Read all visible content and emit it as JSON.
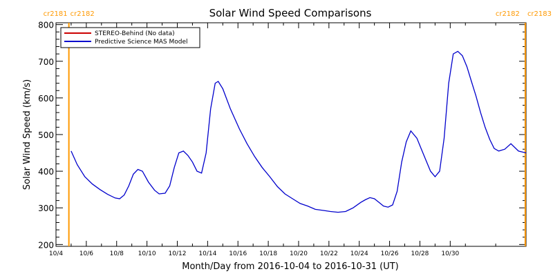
{
  "chart_data": {
    "type": "line",
    "title": "Solar Wind Speed Comparisons",
    "xlabel": "Month/Day from 2016-10-04 to 2016-10-31 (UT)",
    "ylabel": "Solar Wind Speed (km/s)",
    "xlim": [
      4.0,
      35.0
    ],
    "ylim": [
      195,
      805
    ],
    "ytick_values": [
      200,
      300,
      400,
      500,
      600,
      700,
      800
    ],
    "xtick_values": [
      4,
      6,
      8,
      10,
      12,
      14,
      16,
      18,
      20,
      22,
      24,
      26,
      28,
      30
    ],
    "xtick_labels": [
      "10/4",
      "10/6",
      "10/8",
      "10/10",
      "10/12",
      "10/14",
      "10/16",
      "10/18",
      "10/20",
      "10/22",
      "10/24",
      "10/26",
      "10/28",
      "10/30"
    ],
    "grid": false,
    "legend_position": "top-left",
    "series": [
      {
        "name": "STEREO-Behind (No data)",
        "color": "#cc0000",
        "x": [],
        "y": []
      },
      {
        "name": "Predictive Science MAS Model",
        "color": "#0000cc",
        "x": [
          5.0,
          5.4,
          5.9,
          6.4,
          6.9,
          7.4,
          7.9,
          8.2,
          8.5,
          8.8,
          9.1,
          9.4,
          9.7,
          10.1,
          10.5,
          10.8,
          11.2,
          11.5,
          11.8,
          12.1,
          12.4,
          12.7,
          13.0,
          13.3,
          13.6,
          13.9,
          14.2,
          14.5,
          14.7,
          15.0,
          15.5,
          16.1,
          16.6,
          17.1,
          17.6,
          18.1,
          18.6,
          19.1,
          19.6,
          20.1,
          20.6,
          21.1,
          21.6,
          22.1,
          22.6,
          23.1,
          23.6,
          24.1,
          24.4,
          24.7,
          25.0,
          25.3,
          25.6,
          25.9,
          26.2,
          26.5,
          26.8,
          27.1,
          27.4,
          27.8,
          28.1,
          28.4,
          28.7,
          29.0,
          29.3,
          29.6,
          29.9,
          30.2,
          30.5,
          30.8,
          31.1,
          31.4,
          31.7,
          32.0,
          32.3,
          32.6,
          32.9,
          33.2,
          33.6,
          34.0,
          34.5,
          35.0
        ],
        "y": [
          455,
          418,
          385,
          365,
          350,
          337,
          327,
          325,
          335,
          360,
          392,
          405,
          400,
          370,
          348,
          338,
          340,
          360,
          410,
          450,
          455,
          443,
          425,
          400,
          395,
          450,
          570,
          640,
          645,
          625,
          570,
          515,
          475,
          440,
          410,
          385,
          358,
          338,
          325,
          312,
          305,
          296,
          293,
          290,
          288,
          290,
          300,
          315,
          322,
          328,
          325,
          315,
          305,
          302,
          308,
          345,
          425,
          480,
          510,
          490,
          460,
          430,
          400,
          385,
          400,
          490,
          640,
          720,
          727,
          715,
          685,
          645,
          605,
          560,
          520,
          487,
          462,
          455,
          460,
          475,
          455,
          450
        ]
      }
    ],
    "vlines": [
      {
        "x": 4.85,
        "color": "#ff9900",
        "label_left": "cr2181",
        "label_right": "cr2182"
      },
      {
        "x": 34.95,
        "color": "#ff9900",
        "label_left": "cr2182",
        "label_right": "cr2183"
      }
    ]
  }
}
